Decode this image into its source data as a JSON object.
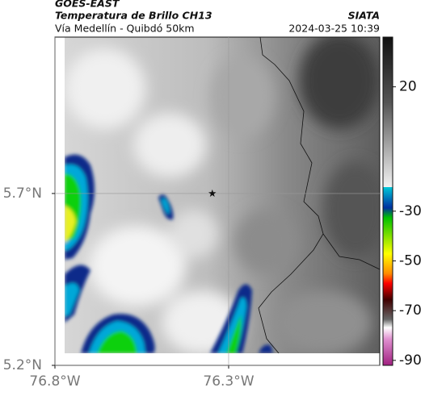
{
  "chart_data": {
    "type": "map",
    "title": "GOES-EAST",
    "subtitle": "Temperatura de Brillo CH13",
    "source": "SIATA",
    "location": "Vía Medellín - Quibdó 50km",
    "datetime": "2024-03-25 10:39",
    "xlim": [
      -76.8,
      -75.865
    ],
    "ylim": [
      5.2,
      6.155
    ],
    "xticks": [
      {
        "value": -76.8,
        "label": "76.8°W"
      },
      {
        "value": -76.3,
        "label": "76.3°W"
      }
    ],
    "yticks": [
      {
        "value": 5.2,
        "label": "5.2°N"
      },
      {
        "value": 5.7,
        "label": "5.7°N"
      }
    ],
    "grid": true,
    "marker": {
      "lon": -76.347,
      "lat": 5.7
    },
    "colorbar": {
      "lim": [
        -92,
        40
      ],
      "ticks": [
        20,
        -30,
        -50,
        -70,
        -90
      ]
    }
  }
}
